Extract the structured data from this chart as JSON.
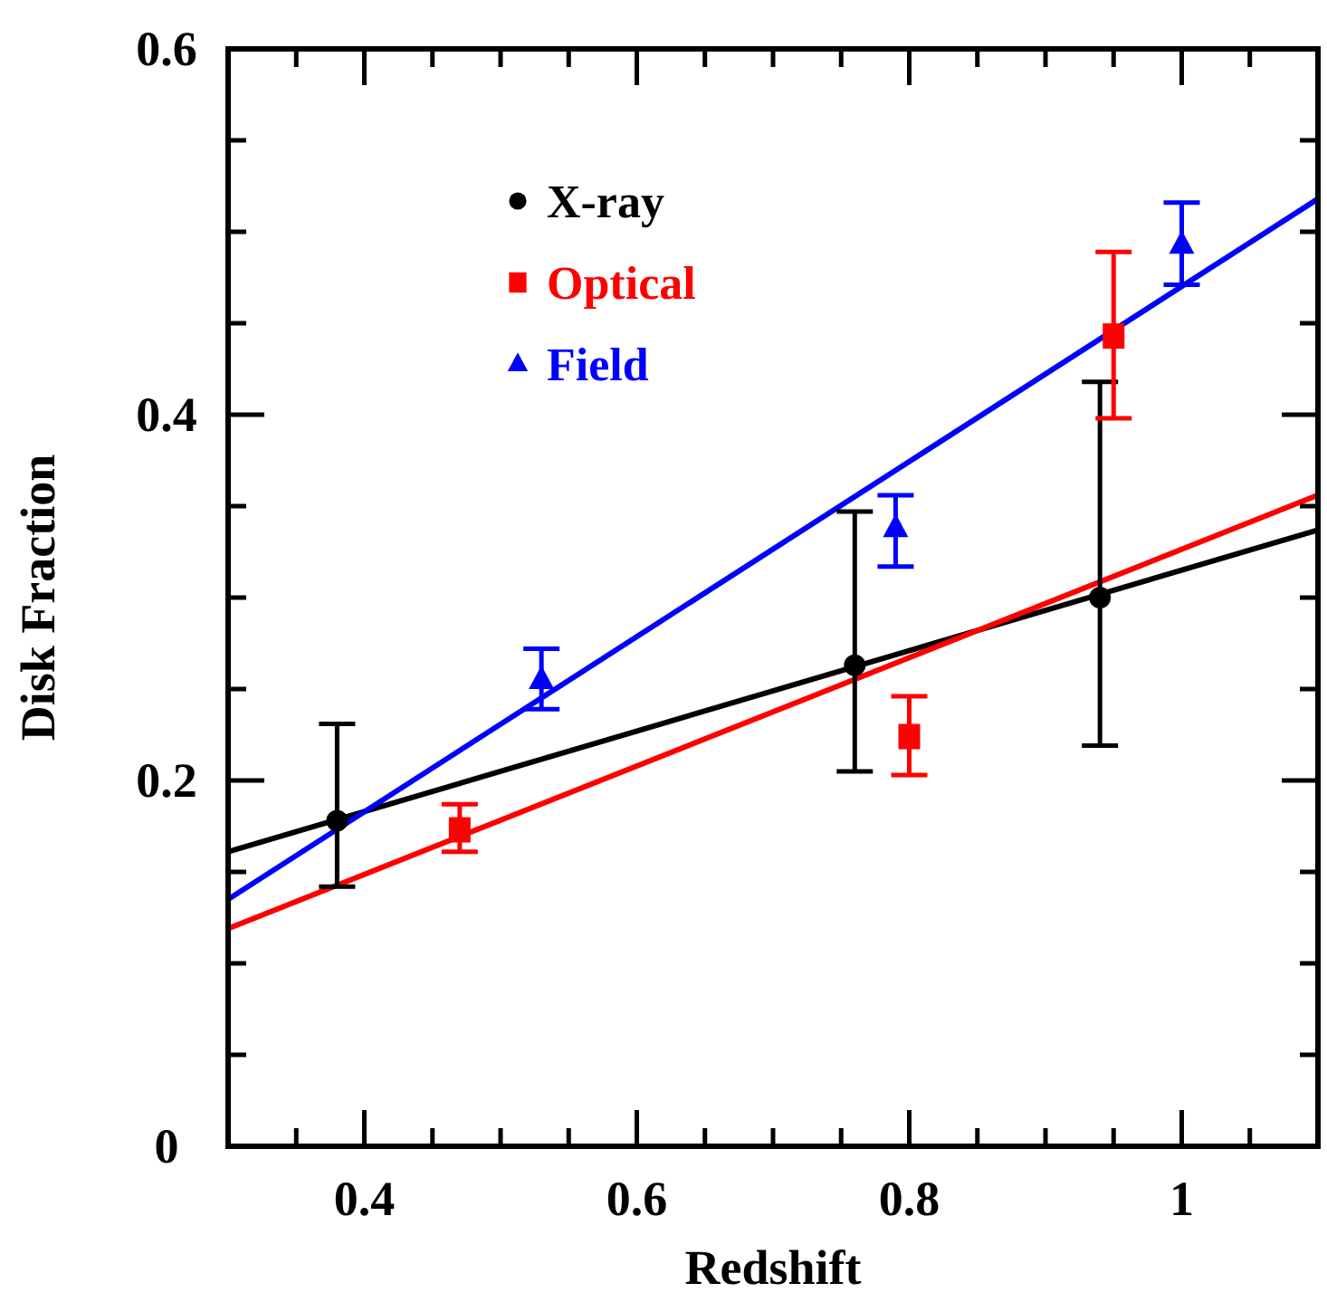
{
  "chart_data": {
    "type": "scatter",
    "xlabel": "Redshift",
    "ylabel": "Disk Fraction",
    "xlim": [
      0.3,
      1.1
    ],
    "ylim": [
      0,
      0.6
    ],
    "xticks": [
      {
        "value": 0.35,
        "label": null
      },
      0.4,
      {
        "value": 0.45,
        "label": null
      },
      {
        "value": 0.5,
        "label": null
      },
      {
        "value": 0.55,
        "label": null
      },
      0.6,
      {
        "value": 0.65,
        "label": null
      },
      {
        "value": 0.7,
        "label": null
      },
      {
        "value": 0.75,
        "label": null
      },
      0.8,
      {
        "value": 0.85,
        "label": null
      },
      {
        "value": 0.9,
        "label": null
      },
      {
        "value": 0.95,
        "label": null
      },
      1,
      {
        "value": 1.05,
        "label": null
      }
    ],
    "yticks": [
      0,
      {
        "value": 0.05,
        "label": null
      },
      {
        "value": 0.1,
        "label": null
      },
      {
        "value": 0.15,
        "label": null
      },
      0.2,
      {
        "value": 0.25,
        "label": null
      },
      {
        "value": 0.3,
        "label": null
      },
      {
        "value": 0.35,
        "label": null
      },
      0.4,
      {
        "value": 0.45,
        "label": null
      },
      {
        "value": 0.5,
        "label": null
      },
      {
        "value": 0.55,
        "label": null
      },
      0.6
    ],
    "legend": "top left",
    "grid": false,
    "series": [
      {
        "name": "X-ray",
        "color": "#000000",
        "marker": "circle",
        "x": [
          0.38,
          0.76,
          0.94
        ],
        "values": [
          0.178,
          0.263,
          0.3
        ],
        "errors": [
          [
            0.142,
            0.231
          ],
          [
            0.205,
            0.347
          ],
          [
            0.219,
            0.418
          ]
        ]
      },
      {
        "name": "Optical",
        "color": "#ff0000",
        "marker": "square",
        "x": [
          0.47,
          0.8,
          0.95
        ],
        "values": [
          0.173,
          0.224,
          0.443
        ],
        "errors": [
          [
            0.161,
            0.187
          ],
          [
            0.203,
            0.246
          ],
          [
            0.398,
            0.489
          ]
        ]
      },
      {
        "name": "Field",
        "color": "#0000ff",
        "marker": "triangle",
        "x": [
          0.53,
          0.79,
          1.0
        ],
        "values": [
          0.255,
          0.338,
          0.493
        ],
        "errors": [
          [
            0.239,
            0.272
          ],
          [
            0.317,
            0.356
          ],
          [
            0.471,
            0.516
          ]
        ]
      },
      {
        "type": "line",
        "color": "#000000",
        "x": [
          0.3,
          1.1
        ],
        "values": [
          0.161,
          0.337
        ]
      },
      {
        "type": "line",
        "color": "#ff0000",
        "x": [
          0.3,
          1.1
        ],
        "values": [
          0.119,
          0.356
        ]
      },
      {
        "type": "line",
        "color": "#0000ff",
        "x": [
          0.3,
          1.1
        ],
        "values": [
          0.135,
          0.518
        ]
      }
    ]
  }
}
